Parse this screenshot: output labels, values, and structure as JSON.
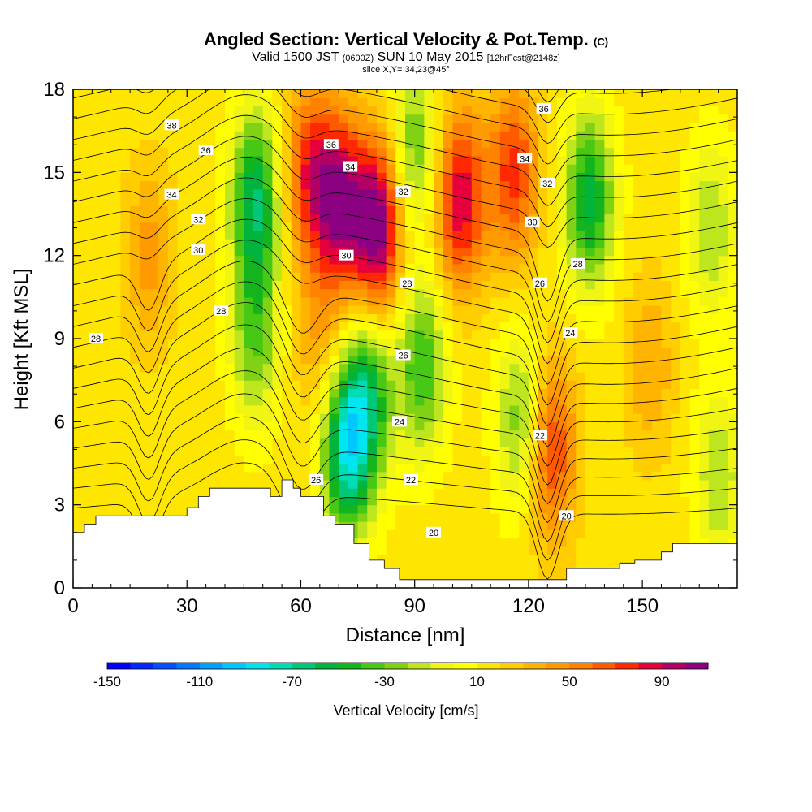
{
  "header": {
    "title_main": "Angled Section: Vertical Velocity & Pot.Temp.",
    "title_unit": "(C)",
    "valid_a": "Valid 1500 JST",
    "valid_zulu": "(0600Z)",
    "valid_b": "SUN 10 May 2015",
    "valid_fcst": "[12hrFcst@2148z]",
    "slice": "slice X,Y= 34,23@45°"
  },
  "chart_data": {
    "type": "heatmap",
    "xlabel": "Distance [nm]",
    "ylabel": "Height [Kft MSL]",
    "xlim": [
      0,
      175
    ],
    "ylim": [
      0,
      18
    ],
    "x_ticks": [
      0,
      30,
      60,
      90,
      120,
      150
    ],
    "y_ticks": [
      0,
      3,
      6,
      9,
      12,
      15,
      18
    ],
    "colorbar": {
      "title": "Vertical Velocity [cm/s]",
      "min": -150,
      "max": 110,
      "step": 10,
      "labels": [
        -150,
        -110,
        -70,
        -30,
        10,
        50,
        90
      ],
      "colors": [
        "#0000ff",
        "#0028ff",
        "#0050ff",
        "#0078ff",
        "#00a0ff",
        "#00c8ff",
        "#00e6f0",
        "#00dcb4",
        "#00c878",
        "#00b43c",
        "#14b41e",
        "#46c814",
        "#82d214",
        "#bee61e",
        "#f0f514",
        "#ffff00",
        "#ffe600",
        "#ffcd00",
        "#ffb400",
        "#ff9b00",
        "#ff8200",
        "#ff5a00",
        "#ff2800",
        "#e6003c",
        "#b40064",
        "#8c0082"
      ]
    },
    "vertical_velocity_field": {
      "background": 15,
      "features": [
        {
          "x": 20,
          "z": 12,
          "value": 45
        },
        {
          "x": 48,
          "z": 14,
          "value": -60
        },
        {
          "x": 48,
          "z": 9,
          "value": -30
        },
        {
          "x": 62,
          "z": 15,
          "value": 70
        },
        {
          "x": 70,
          "z": 14,
          "value": 95
        },
        {
          "x": 80,
          "z": 13,
          "value": 110
        },
        {
          "x": 65,
          "z": 9,
          "value": 40
        },
        {
          "x": 72,
          "z": 5,
          "value": -75
        },
        {
          "x": 78,
          "z": 7,
          "value": -45
        },
        {
          "x": 90,
          "z": 16,
          "value": -30
        },
        {
          "x": 92,
          "z": 8,
          "value": -40
        },
        {
          "x": 102,
          "z": 14,
          "value": 90
        },
        {
          "x": 116,
          "z": 15,
          "value": 75
        },
        {
          "x": 118,
          "z": 6,
          "value": -30
        },
        {
          "x": 126,
          "z": 5,
          "value": 75
        },
        {
          "x": 136,
          "z": 14,
          "value": -55
        },
        {
          "x": 152,
          "z": 8,
          "value": 40
        },
        {
          "x": 168,
          "z": 13,
          "value": -20
        },
        {
          "x": 170,
          "z": 4,
          "value": -20
        }
      ]
    },
    "terrain": [
      [
        0,
        2.0
      ],
      [
        3,
        2.3
      ],
      [
        6,
        2.6
      ],
      [
        30,
        2.9
      ],
      [
        33,
        3.3
      ],
      [
        36,
        3.6
      ],
      [
        52,
        3.3
      ],
      [
        55,
        3.9
      ],
      [
        58,
        3.6
      ],
      [
        60,
        3.3
      ],
      [
        66,
        2.6
      ],
      [
        69,
        2.3
      ],
      [
        74,
        1.6
      ],
      [
        78,
        1.0
      ],
      [
        82,
        0.7
      ],
      [
        86,
        0.3
      ],
      [
        125,
        0.3
      ],
      [
        130,
        0.7
      ],
      [
        144,
        0.9
      ],
      [
        148,
        1.0
      ],
      [
        155,
        1.3
      ],
      [
        158,
        1.6
      ],
      [
        175,
        1.6
      ]
    ],
    "pot_temp_contours": [
      {
        "label": "20",
        "x": 95,
        "z": 2.0
      },
      {
        "label": "22",
        "x": 123,
        "z": 5.5
      },
      {
        "label": "24",
        "x": 86,
        "z": 6.0
      },
      {
        "label": "26",
        "x": 87,
        "z": 8.4
      },
      {
        "label": "26",
        "x": 64,
        "z": 3.9
      },
      {
        "label": "28",
        "x": 6,
        "z": 9.0
      },
      {
        "label": "28",
        "x": 39,
        "z": 10.0
      },
      {
        "label": "28",
        "x": 88,
        "z": 11.0
      },
      {
        "label": "28",
        "x": 133,
        "z": 11.7
      },
      {
        "label": "26",
        "x": 123,
        "z": 11.0
      },
      {
        "label": "24",
        "x": 131,
        "z": 9.2
      },
      {
        "label": "22",
        "x": 89,
        "z": 3.9
      },
      {
        "label": "20",
        "x": 130,
        "z": 2.6
      },
      {
        "label": "30",
        "x": 33,
        "z": 12.2
      },
      {
        "label": "30",
        "x": 72,
        "z": 12.0
      },
      {
        "label": "30",
        "x": 121,
        "z": 13.2
      },
      {
        "label": "32",
        "x": 33,
        "z": 13.3
      },
      {
        "label": "32",
        "x": 87,
        "z": 14.3
      },
      {
        "label": "32",
        "x": 125,
        "z": 14.6
      },
      {
        "label": "34",
        "x": 26,
        "z": 14.2
      },
      {
        "label": "34",
        "x": 73,
        "z": 15.2
      },
      {
        "label": "34",
        "x": 119,
        "z": 15.5
      },
      {
        "label": "36",
        "x": 35,
        "z": 15.8
      },
      {
        "label": "36",
        "x": 68,
        "z": 16.0
      },
      {
        "label": "36",
        "x": 124,
        "z": 17.3
      },
      {
        "label": "38",
        "x": 26,
        "z": 16.7
      }
    ]
  }
}
